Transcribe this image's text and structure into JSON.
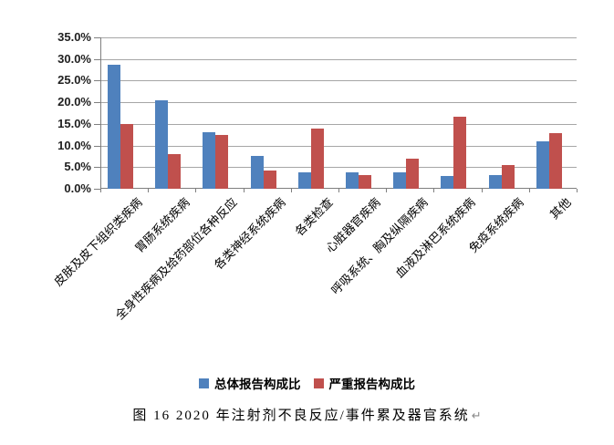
{
  "figure": {
    "caption": "图 16  2020 年注射剂不良反应/事件累及器官系统",
    "return_mark": "↵"
  },
  "legend": [
    {
      "label": "总体报告构成比",
      "color": "#4F81BD"
    },
    {
      "label": "严重报告构成比",
      "color": "#C0504D"
    }
  ],
  "chart_data": {
    "type": "bar",
    "title": "",
    "xlabel": "",
    "ylabel": "",
    "categories": [
      "皮肤及皮下组织类疾病",
      "胃肠系统疾病",
      "全身性疾病及给药部位各种反应",
      "各类神经系统疾病",
      "各类检查",
      "心脏器官疾病",
      "呼吸系统、胸及纵隔疾病",
      "血液及淋巴系统疾病",
      "免疫系统疾病",
      "其他"
    ],
    "series": [
      {
        "name": "总体报告构成比",
        "color": "#4F81BD",
        "values": [
          28.6,
          20.4,
          13.0,
          7.7,
          3.9,
          3.8,
          3.9,
          3.0,
          3.2,
          10.9
        ]
      },
      {
        "name": "严重报告构成比",
        "color": "#C0504D",
        "values": [
          14.9,
          8.0,
          12.5,
          4.2,
          14.0,
          3.2,
          7.0,
          16.6,
          5.5,
          12.8
        ]
      }
    ],
    "unit": "%",
    "ylim": [
      0,
      35
    ],
    "ytick_step": 5,
    "ytick_labels_top_down": [
      "35.0%",
      "30.0%",
      "25.0%",
      "20.0%",
      "15.0%",
      "10.0%",
      "5.0%",
      "0.0%"
    ],
    "grid": true,
    "legend_position": "bottom"
  },
  "style_colors": {
    "gridline": "#a6a6a6",
    "axis": "#7f7f7f",
    "background": "#ffffff"
  }
}
